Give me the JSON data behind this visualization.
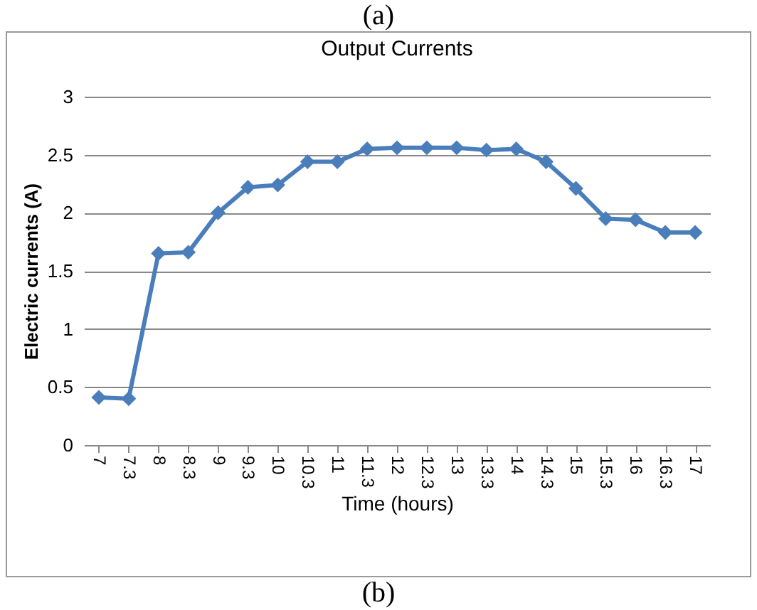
{
  "chart_data": {
    "type": "line",
    "title": "Output Currents",
    "xlabel": "Time (hours)",
    "ylabel": "Electric currents (A)",
    "annotations": [
      "(a)",
      "(b)"
    ],
    "categories": [
      "7",
      "7.3",
      "8",
      "8.3",
      "9",
      "9.3",
      "10",
      "10.3",
      "11",
      "11.3",
      "12",
      "12.3",
      "13",
      "13.3",
      "14",
      "14.3",
      "15",
      "15.3",
      "16",
      "16.3",
      "17"
    ],
    "series": [
      {
        "color": "#4a7ebb",
        "values": [
          0.41,
          0.4,
          1.65,
          1.66,
          2.0,
          2.22,
          2.24,
          2.44,
          2.44,
          2.55,
          2.56,
          2.56,
          2.56,
          2.54,
          2.55,
          2.44,
          2.21,
          1.95,
          1.94,
          1.83,
          1.83
        ]
      }
    ],
    "ylim": [
      0,
      3
    ],
    "yticks": [
      0,
      0.5,
      1,
      1.5,
      2,
      2.5,
      3
    ],
    "grid": "y",
    "marker": "diamond",
    "line_style": "solid"
  }
}
